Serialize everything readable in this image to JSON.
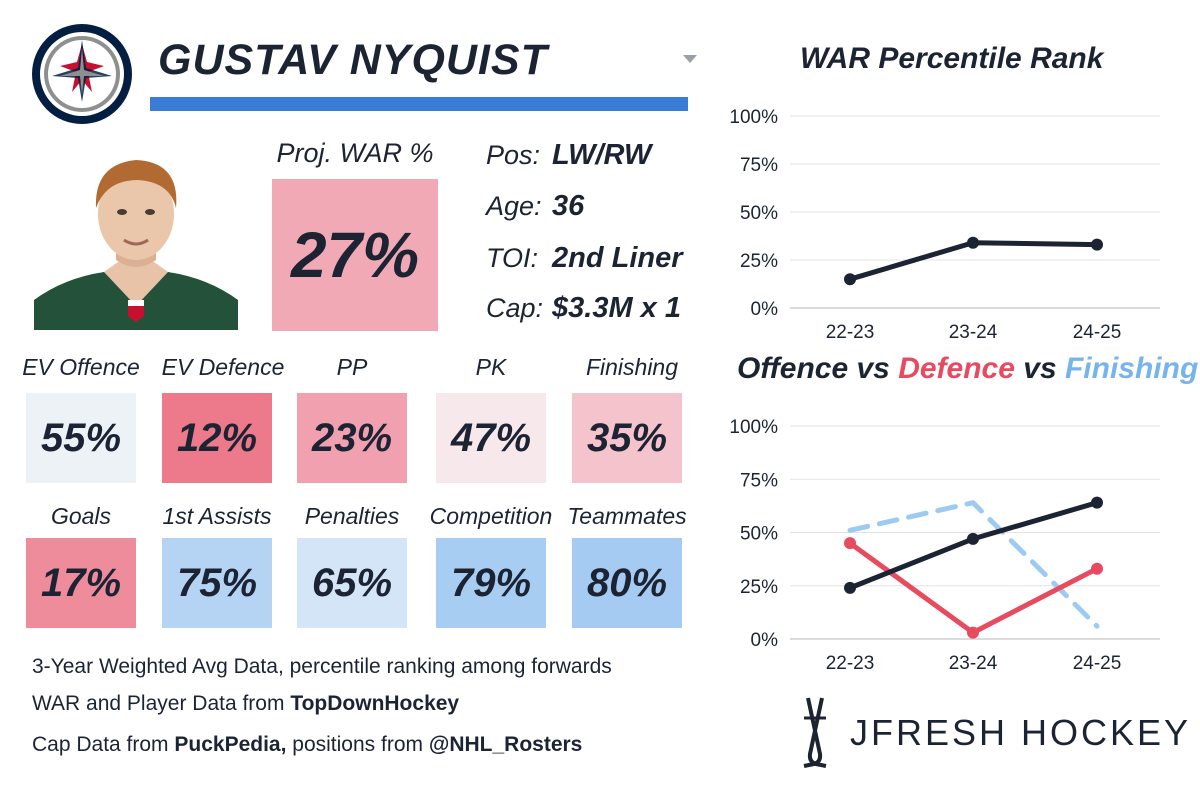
{
  "player": {
    "name": "GUSTAV NYQUIST",
    "proj_war_label": "Proj. WAR %",
    "proj_war_value": "27%",
    "proj_war_color": "#f2a9b6"
  },
  "info": [
    {
      "key": "Pos:",
      "value": "LW/RW"
    },
    {
      "key": "Age:",
      "value": "36"
    },
    {
      "key": "TOI:",
      "value": "2nd Liner"
    },
    {
      "key": "Cap:",
      "value": "$3.3M x 1"
    }
  ],
  "stats": [
    {
      "label": "EV Offence",
      "value": "55%",
      "color": "#edf2f7"
    },
    {
      "label": "EV Defence",
      "value": "12%",
      "color": "#ec7a8a"
    },
    {
      "label": "PP",
      "value": "23%",
      "color": "#f0a0ae"
    },
    {
      "label": "PK",
      "value": "47%",
      "color": "#f7e8ec"
    },
    {
      "label": "Finishing",
      "value": "35%",
      "color": "#f5c3cc"
    },
    {
      "label": "Goals",
      "value": "17%",
      "color": "#ee8c9b"
    },
    {
      "label": "1st Assists",
      "value": "75%",
      "color": "#b5d4f4"
    },
    {
      "label": "Penalties",
      "value": "65%",
      "color": "#d3e5f7"
    },
    {
      "label": "Competition",
      "value": "79%",
      "color": "#a8cdf3"
    },
    {
      "label": "Teammates",
      "value": "80%",
      "color": "#a5cbf3"
    }
  ],
  "footer": {
    "line1": "3-Year Weighted Avg Data, percentile ranking among forwards",
    "line2_prefix": "WAR and Player Data from ",
    "line2_bold": "TopDownHockey",
    "line3_prefix": "Cap Data from ",
    "line3_bold1": "PuckPedia,",
    "line3_mid": " positions from ",
    "line3_bold2": "@NHL_Rosters"
  },
  "brand": {
    "name": "JFRESH HOCKEY"
  },
  "icons": {
    "team_logo": "jets-logo-icon",
    "dropdown": "chevron-down-icon",
    "brand_mark": "hockey-sticks-icon"
  },
  "chart_data": [
    {
      "type": "line",
      "title": "WAR Percentile Rank",
      "categories": [
        "22-23",
        "23-24",
        "24-25"
      ],
      "yticks": [
        "0%",
        "25%",
        "50%",
        "75%",
        "100%"
      ],
      "ylim": [
        0,
        100
      ],
      "grid": true,
      "series": [
        {
          "values": [
            15,
            34,
            33
          ],
          "color": "#1c2434",
          "dashed": false
        }
      ]
    },
    {
      "type": "line",
      "title_parts": [
        {
          "text": "Offence",
          "color": "#1c2434"
        },
        {
          "text": " vs ",
          "color": "#1c2434"
        },
        {
          "text": "Defence",
          "color": "#e84a5f"
        },
        {
          "text": " vs ",
          "color": "#1c2434"
        },
        {
          "text": "Finishing",
          "color": "#78b4ec"
        }
      ],
      "categories": [
        "22-23",
        "23-24",
        "24-25"
      ],
      "yticks": [
        "0%",
        "25%",
        "50%",
        "75%",
        "100%"
      ],
      "ylim": [
        0,
        100
      ],
      "grid": true,
      "series": [
        {
          "values": [
            51,
            64,
            6
          ],
          "color": "#9ccaf1",
          "dashed": true
        },
        {
          "values": [
            45,
            3,
            33
          ],
          "color": "#e84a5f",
          "dashed": false
        },
        {
          "values": [
            24,
            47,
            64
          ],
          "color": "#1c2434",
          "dashed": false
        }
      ]
    }
  ]
}
